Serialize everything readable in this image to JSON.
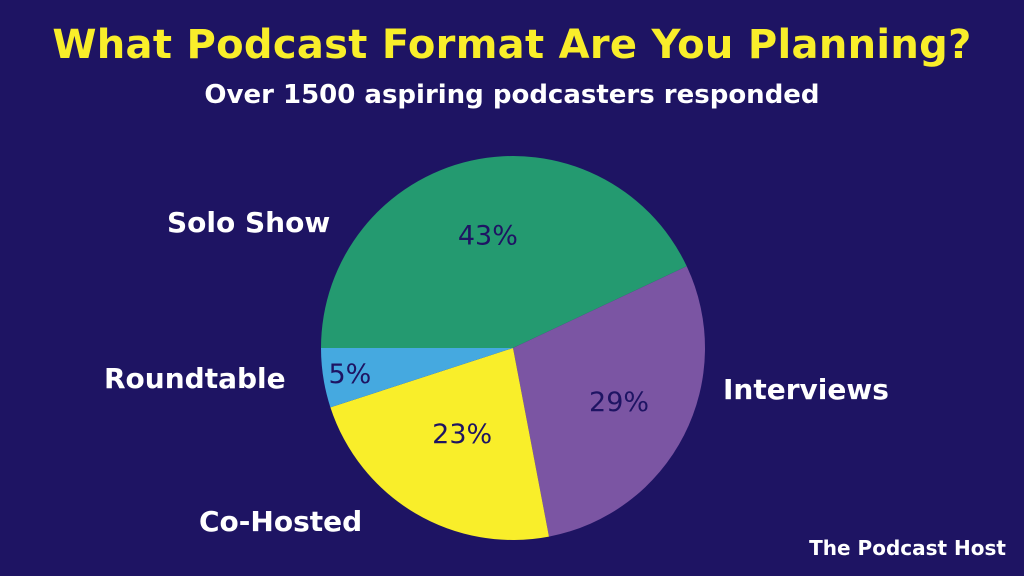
{
  "header": {
    "title": "What Podcast Format Are You Planning?",
    "subtitle": "Over 1500 aspiring podcasters responded"
  },
  "brand": "The Podcast Host",
  "colors": {
    "background": "#1e1463",
    "title": "#f9ee2a",
    "value_text": "#1e1463"
  },
  "chart_data": {
    "type": "pie",
    "title": "What Podcast Format Are You Planning?",
    "subtitle": "Over 1500 aspiring podcasters responded",
    "categories": [
      "Solo Show",
      "Interviews",
      "Co-Hosted",
      "Roundtable"
    ],
    "values": [
      43,
      29,
      23,
      5
    ],
    "value_labels": [
      "43%",
      "29%",
      "23%",
      "5%"
    ],
    "colors": [
      "#249a70",
      "#7b55a3",
      "#f9ee2a",
      "#45a9e0"
    ],
    "start_angle_deg": 180,
    "direction": "clockwise",
    "legend": "none (outside labels)"
  },
  "labels": {
    "solo": "Solo Show",
    "interviews": "Interviews",
    "cohosted": "Co-Hosted",
    "roundtable": "Roundtable"
  }
}
